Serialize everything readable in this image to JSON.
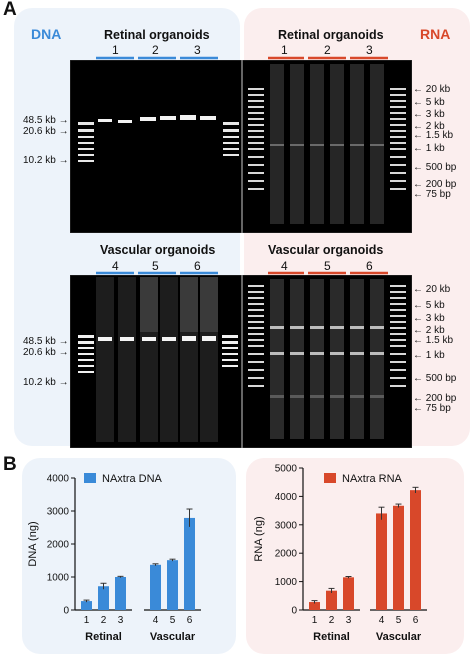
{
  "panel_labels": {
    "a": "A",
    "b": "B"
  },
  "headers": {
    "dna": "DNA",
    "rna": "RNA"
  },
  "colors": {
    "dna": "#3a8ad8",
    "rna": "#d8482a",
    "dna_bg": "#edf3fa",
    "rna_bg": "#fbeeee"
  },
  "groups": {
    "retinal_title": "Retinal organoids",
    "vascular_title": "Vascular organoids",
    "retinal_lanes": [
      "1",
      "2",
      "3"
    ],
    "vascular_lanes": [
      "4",
      "5",
      "6"
    ]
  },
  "dna_markers": [
    "48.5 kb",
    "20.6 kb",
    "10.2 kb"
  ],
  "rna_markers": [
    "20 kb",
    "5 kb",
    "3 kb",
    "2 kb",
    "1.5 kb",
    "1 kb",
    "500 bp",
    "200 bp",
    "75 bp"
  ],
  "chart_data": [
    {
      "type": "bar",
      "legend": "NAxtra DNA",
      "ylabel": "DNA (ng)",
      "ylim": [
        0,
        4000
      ],
      "yticks": [
        0,
        1000,
        2000,
        3000,
        4000
      ],
      "categories": [
        "1",
        "2",
        "3",
        "4",
        "5",
        "6"
      ],
      "groups": [
        "Retinal",
        "Vascular"
      ],
      "values": [
        270,
        720,
        1000,
        1370,
        1510,
        2790
      ],
      "errors": [
        30,
        90,
        20,
        30,
        30,
        270
      ],
      "color": "#3a8ad8"
    },
    {
      "type": "bar",
      "legend": "NAxtra RNA",
      "ylabel": "RNA (ng)",
      "ylim": [
        0,
        5000
      ],
      "yticks": [
        0,
        1000,
        2000,
        3000,
        4000,
        5000
      ],
      "categories": [
        "1",
        "2",
        "3",
        "4",
        "5",
        "6"
      ],
      "groups": [
        "Retinal",
        "Vascular"
      ],
      "values": [
        280,
        680,
        1150,
        3400,
        3670,
        4220
      ],
      "errors": [
        50,
        80,
        30,
        220,
        60,
        100
      ],
      "color": "#d8482a"
    }
  ]
}
